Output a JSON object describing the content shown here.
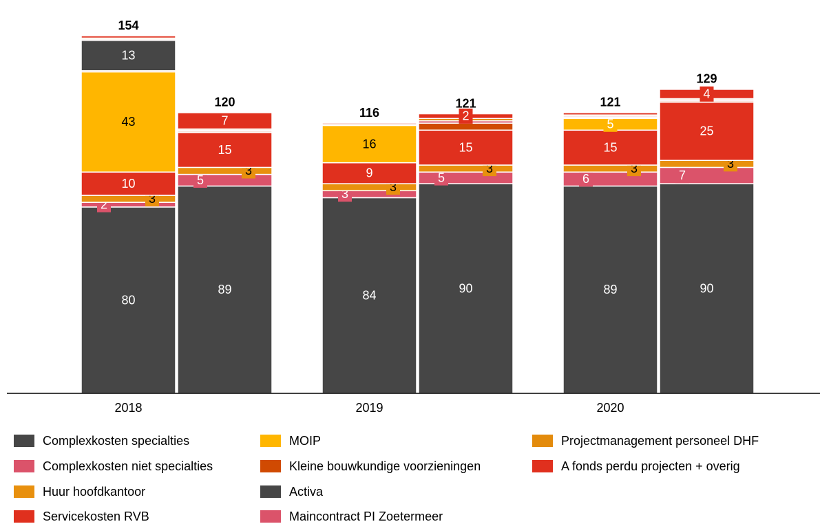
{
  "chart_data": {
    "type": "stacked_bar",
    "categories": [
      "2018",
      "2019",
      "2020"
    ],
    "ylim": [
      0,
      160
    ],
    "totals": [
      [
        154,
        120
      ],
      [
        116,
        121
      ],
      [
        121,
        129
      ]
    ],
    "series": [
      {
        "name": "Complexkosten specialties",
        "color": "#464646",
        "values": [
          [
            80,
            89
          ],
          [
            84,
            90
          ],
          [
            89,
            90
          ]
        ]
      },
      {
        "name": "Complexkosten niet specialties",
        "color": "#db536a",
        "values": [
          [
            2,
            5
          ],
          [
            3,
            5
          ],
          [
            6,
            7
          ]
        ]
      },
      {
        "name": "Huur hoofdkantoor",
        "color": "#e8900e",
        "values": [
          [
            3,
            3
          ],
          [
            3,
            3
          ],
          [
            3,
            3
          ]
        ]
      },
      {
        "name": "Servicekosten RVB",
        "color": "#e0301e",
        "values": [
          [
            10,
            15
          ],
          [
            9,
            15
          ],
          [
            15,
            25
          ]
        ]
      },
      {
        "name": "MOIP",
        "color": "#ffb600",
        "values": [
          [
            43,
            0
          ],
          [
            16,
            0
          ],
          [
            5,
            0
          ]
        ]
      },
      {
        "name": "Kleine bouwkundige voorzieningen",
        "color": "#d04a02",
        "values": [
          [
            0.5,
            0.5
          ],
          [
            0.5,
            3
          ],
          [
            0.5,
            0.5
          ]
        ],
        "value_labels": [
          [
            null,
            null
          ],
          [
            null,
            null
          ],
          [
            null,
            null
          ]
        ]
      },
      {
        "name": "Activa",
        "color": "#464646",
        "values": [
          [
            13,
            0
          ],
          [
            0,
            0
          ],
          [
            0,
            0
          ]
        ]
      },
      {
        "name": "Maincontract PI Zoetermeer",
        "color": "#db536a",
        "values": [
          [
            0.5,
            0.5
          ],
          [
            0,
            1
          ],
          [
            0.5,
            0.5
          ]
        ],
        "value_labels": [
          [
            null,
            null
          ],
          [
            null,
            null
          ],
          [
            null,
            null
          ]
        ]
      },
      {
        "name": "Projectmanagement personeel DHF",
        "color": "#e38b0c",
        "values": [
          [
            0.5,
            0.5
          ],
          [
            0,
            1
          ],
          [
            0.5,
            0.5
          ]
        ],
        "value_labels": [
          [
            null,
            null
          ],
          [
            null,
            null
          ],
          [
            null,
            null
          ]
        ]
      },
      {
        "name": "A fonds perdu projecten + overig",
        "color": "#e0301e",
        "values": [
          [
            1,
            7
          ],
          [
            0.5,
            2
          ],
          [
            1,
            4
          ]
        ],
        "value_labels": [
          [
            null,
            "7"
          ],
          [
            null,
            "2"
          ],
          [
            null,
            "4"
          ]
        ]
      }
    ]
  }
}
